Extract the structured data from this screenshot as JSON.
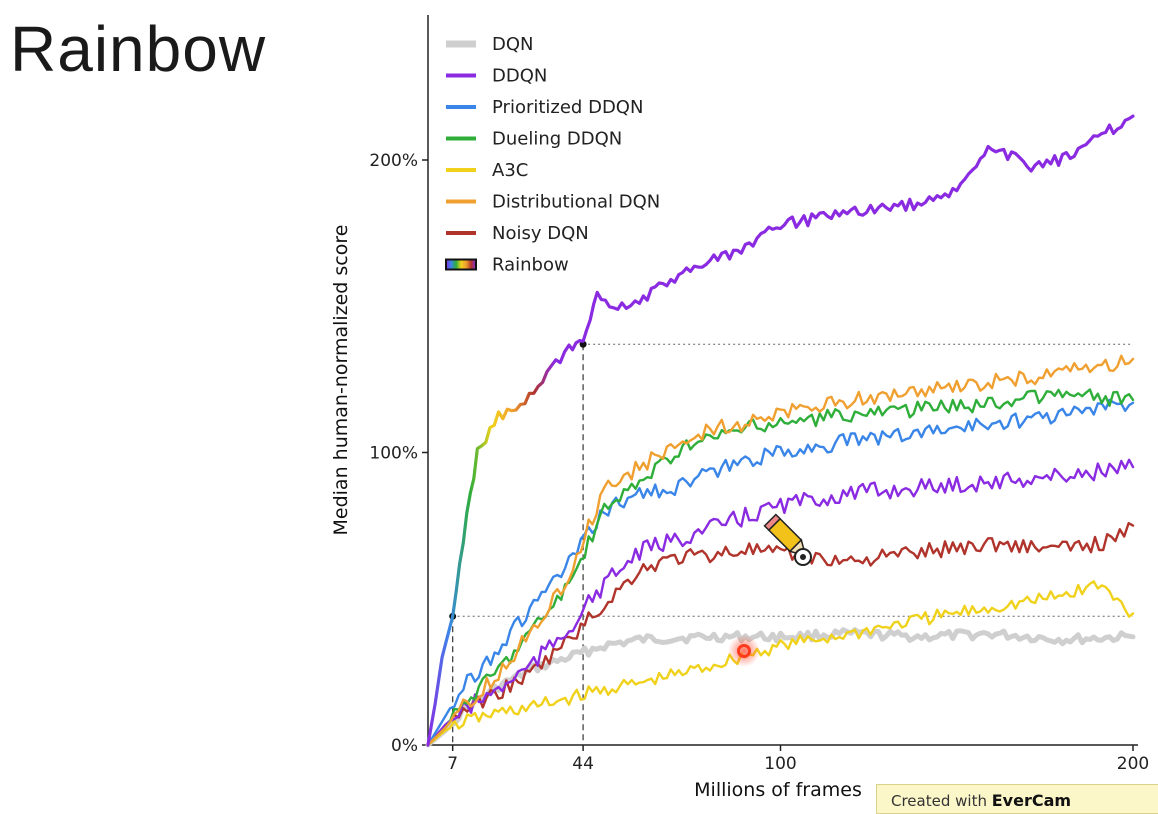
{
  "slide": {
    "title": "Rainbow"
  },
  "watermark": {
    "prefix": "Created with",
    "brand": "EverCam"
  },
  "colors": {
    "DQN": "#cfcfcf",
    "DDQN": "#8a2be2",
    "Prioritized DDQN": "#3a86e8",
    "Dueling DDQN": "#2fae3a",
    "A3C": "#f0d21c",
    "Distributional DQN": "#f0a030",
    "Noisy DQN": "#b0342c",
    "Rainbow": "rainbow"
  },
  "chart_data": {
    "type": "line",
    "xlabel": "Millions of frames",
    "ylabel": "Median human-normalized score",
    "x_ticks": [
      7,
      44,
      100,
      200
    ],
    "y_ticks": [
      0,
      100,
      200
    ],
    "y_tick_labels": [
      "0%",
      "100%",
      "200%"
    ],
    "xlim": [
      0,
      200
    ],
    "ylim": [
      0,
      200
    ],
    "legend_position": "top-left",
    "legend": [
      "DQN",
      "DDQN",
      "Prioritized DDQN",
      "Dueling DDQN",
      "A3C",
      "Distributional DQN",
      "Noisy DQN",
      "Rainbow"
    ],
    "reference_lines": [
      {
        "x": 7,
        "y": 44
      },
      {
        "x": 44,
        "y": 137
      }
    ],
    "series": [
      {
        "name": "DQN",
        "x": [
          0,
          5,
          10,
          20,
          30,
          40,
          50,
          60,
          80,
          100,
          120,
          140,
          160,
          180,
          200
        ],
        "y": [
          0,
          5,
          12,
          20,
          26,
          30,
          34,
          36,
          37,
          37,
          38,
          37,
          38,
          36,
          37
        ]
      },
      {
        "name": "A3C",
        "x": [
          0,
          5,
          10,
          20,
          30,
          40,
          50,
          60,
          80,
          100,
          120,
          140,
          160,
          180,
          190,
          200
        ],
        "y": [
          0,
          5,
          8,
          11,
          13,
          16,
          19,
          21,
          27,
          34,
          38,
          43,
          47,
          51,
          55,
          45
        ]
      },
      {
        "name": "Noisy DQN",
        "x": [
          0,
          5,
          10,
          20,
          30,
          40,
          50,
          60,
          70,
          80,
          90,
          100,
          120,
          140,
          160,
          180,
          195,
          200
        ],
        "y": [
          0,
          7,
          12,
          18,
          25,
          36,
          48,
          60,
          64,
          65,
          67,
          65,
          63,
          66,
          69,
          67,
          70,
          75
        ]
      },
      {
        "name": "DDQN",
        "x": [
          0,
          5,
          10,
          20,
          30,
          40,
          50,
          60,
          70,
          80,
          90,
          100,
          120,
          140,
          160,
          180,
          200
        ],
        "y": [
          0,
          7,
          12,
          19,
          28,
          40,
          55,
          66,
          70,
          74,
          78,
          82,
          86,
          88,
          90,
          92,
          95
        ]
      },
      {
        "name": "Prioritized DDQN",
        "x": [
          0,
          5,
          10,
          20,
          30,
          40,
          50,
          60,
          70,
          80,
          90,
          100,
          120,
          140,
          160,
          180,
          200
        ],
        "y": [
          0,
          10,
          20,
          33,
          48,
          62,
          80,
          86,
          88,
          93,
          97,
          100,
          104,
          107,
          110,
          113,
          117
        ]
      },
      {
        "name": "Dueling DDQN",
        "x": [
          0,
          5,
          10,
          20,
          30,
          40,
          50,
          60,
          70,
          80,
          90,
          100,
          120,
          140,
          160,
          180,
          200
        ],
        "y": [
          0,
          6,
          14,
          26,
          40,
          55,
          80,
          90,
          100,
          105,
          108,
          110,
          113,
          115,
          117,
          120,
          118
        ]
      },
      {
        "name": "Distributional DQN",
        "x": [
          0,
          5,
          10,
          20,
          30,
          40,
          50,
          60,
          70,
          80,
          90,
          100,
          120,
          140,
          160,
          180,
          200
        ],
        "y": [
          0,
          6,
          13,
          24,
          40,
          58,
          88,
          95,
          102,
          108,
          110,
          113,
          118,
          121,
          124,
          127,
          132
        ]
      },
      {
        "name": "Rainbow",
        "x": [
          0,
          2,
          4,
          7,
          10,
          14,
          20,
          25,
          30,
          35,
          40,
          44,
          48,
          55,
          60,
          70,
          80,
          90,
          100,
          110,
          120,
          130,
          140,
          150,
          160,
          170,
          180,
          190,
          200
        ],
        "y": [
          0,
          14,
          30,
          44,
          70,
          100,
          113,
          114,
          120,
          128,
          135,
          137,
          153,
          150,
          152,
          160,
          165,
          170,
          178,
          180,
          182,
          184,
          185,
          190,
          205,
          198,
          200,
          208,
          215
        ]
      }
    ]
  }
}
